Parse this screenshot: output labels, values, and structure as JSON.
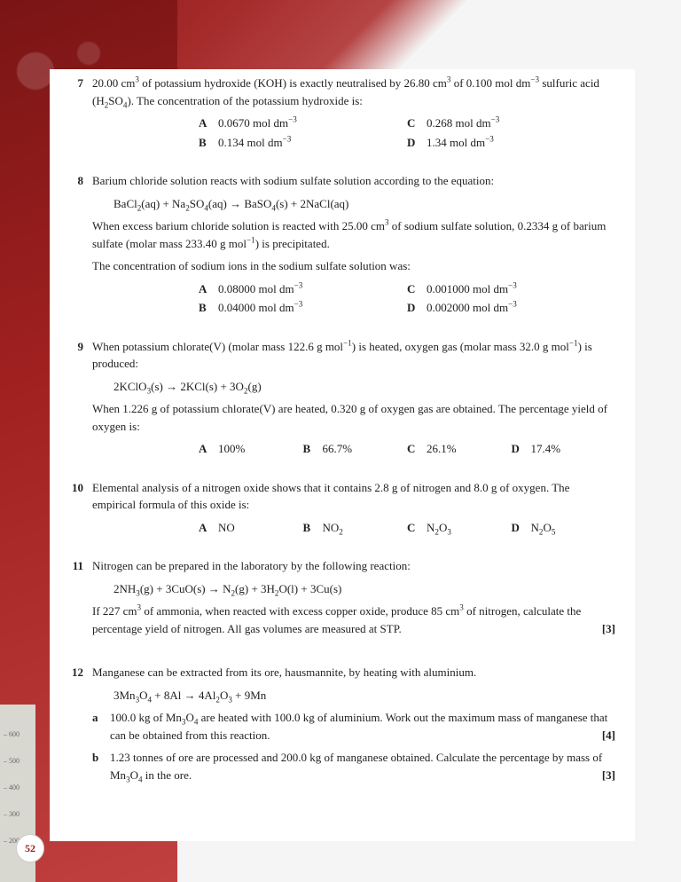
{
  "page_number": "52",
  "background_color": "#a02020",
  "ruler_marks": [
    "600",
    "500",
    "400",
    "300",
    "200"
  ],
  "questions": [
    {
      "num": "7",
      "text_html": "20.00 cm<sup>3</sup> of potassium hydroxide (KOH) is exactly neutralised by 26.80 cm<sup>3</sup> of 0.100 mol dm<sup>−3</sup> sulfuric acid (H<sub>2</sub>SO<sub>4</sub>). The concentration of the potassium hydroxide is:",
      "options_layout": "2col",
      "options": [
        {
          "l": "A",
          "t": "0.0670 mol dm<sup>−3</sup>"
        },
        {
          "l": "C",
          "t": "0.268 mol dm<sup>−3</sup>"
        },
        {
          "l": "B",
          "t": "0.134 mol dm<sup>−3</sup>"
        },
        {
          "l": "D",
          "t": "1.34 mol dm<sup>−3</sup>"
        }
      ]
    },
    {
      "num": "8",
      "text_html": "Barium chloride solution reacts with sodium sulfate solution according to the equation:",
      "equation_html": "BaCl<sub>2</sub>(aq) + Na<sub>2</sub>SO<sub>4</sub>(aq) → BaSO<sub>4</sub>(s) + 2NaCl(aq)",
      "text2_html": "When excess barium chloride solution is reacted with 25.00 cm<sup>3</sup> of sodium sulfate solution, 0.2334 g of barium sulfate (molar mass 233.40 g mol<sup>−1</sup>) is precipitated.",
      "text3_html": "The concentration of sodium ions in the sodium sulfate solution was:",
      "options_layout": "2col",
      "options": [
        {
          "l": "A",
          "t": "0.08000 mol dm<sup>−3</sup>"
        },
        {
          "l": "C",
          "t": "0.001000 mol dm<sup>−3</sup>"
        },
        {
          "l": "B",
          "t": "0.04000 mol dm<sup>−3</sup>"
        },
        {
          "l": "D",
          "t": "0.002000 mol dm<sup>−3</sup>"
        }
      ]
    },
    {
      "num": "9",
      "text_html": "When potassium chlorate(V) (molar mass 122.6 g mol<sup>−1</sup>) is heated, oxygen gas (molar mass 32.0 g mol<sup>−1</sup>) is produced:",
      "equation_html": "2KClO<sub>3</sub>(s) → 2KCl(s) + 3O<sub>2</sub>(g)",
      "text2_html": "When 1.226 g of potassium chlorate(V) are heated, 0.320 g of oxygen gas are obtained. The percentage yield of oxygen is:",
      "options_layout": "4col",
      "options": [
        {
          "l": "A",
          "t": "100%"
        },
        {
          "l": "B",
          "t": "66.7%"
        },
        {
          "l": "C",
          "t": "26.1%"
        },
        {
          "l": "D",
          "t": "17.4%"
        }
      ]
    },
    {
      "num": "10",
      "text_html": "Elemental analysis of a nitrogen oxide shows that it contains 2.8 g of nitrogen and 8.0 g of oxygen. The empirical formula of this oxide is:",
      "options_layout": "4col",
      "options": [
        {
          "l": "A",
          "t": "NO"
        },
        {
          "l": "B",
          "t": "NO<sub>2</sub>"
        },
        {
          "l": "C",
          "t": "N<sub>2</sub>O<sub>3</sub>"
        },
        {
          "l": "D",
          "t": "N<sub>2</sub>O<sub>5</sub>"
        }
      ]
    },
    {
      "num": "11",
      "text_html": "Nitrogen can be prepared in the laboratory by the following reaction:",
      "equation_html": "2NH<sub>3</sub>(g) + 3CuO(s) → N<sub>2</sub>(g) + 3H<sub>2</sub>O(l) + 3Cu(s)",
      "text2_html": "If 227 cm<sup>3</sup> of ammonia, when reacted with excess copper oxide, produce 85 cm<sup>3</sup> of nitrogen, calculate the percentage yield of nitrogen. All gas volumes are measured at STP.",
      "marks2": "[3]"
    },
    {
      "num": "12",
      "text_html": "Manganese can be extracted from its ore, hausmannite, by heating with aluminium.",
      "equation_html": "3Mn<sub>3</sub>O<sub>4</sub> + 8Al → 4Al<sub>2</sub>O<sub>3</sub> + 9Mn",
      "subparts": [
        {
          "l": "a",
          "t": "100.0 kg of Mn<sub>3</sub>O<sub>4</sub> are heated with 100.0 kg of aluminium. Work out the maximum mass of manganese that can be obtained from this reaction.",
          "m": "[4]"
        },
        {
          "l": "b",
          "t": "1.23 tonnes of ore are processed and 200.0 kg of manganese obtained. Calculate the percentage by mass of Mn<sub>3</sub>O<sub>4</sub> in the ore.",
          "m": "[3]"
        }
      ]
    }
  ]
}
